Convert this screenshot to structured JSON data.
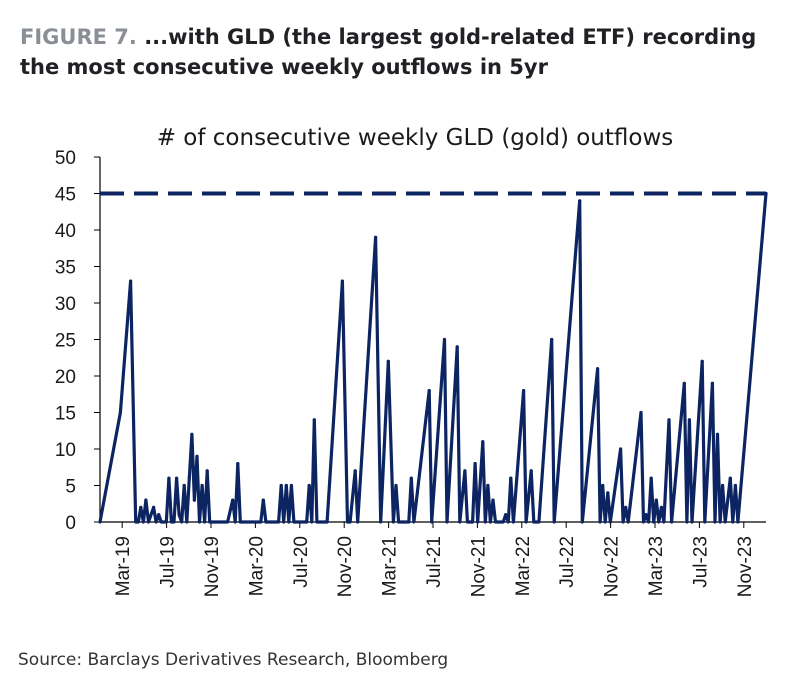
{
  "header": {
    "figure_label": "FIGURE 7.",
    "figure_title": "...with GLD (the largest gold-related ETF) recording the most consecutive weekly outflows in 5yr"
  },
  "source": "Source: Barclays Derivatives Research, Bloomberg",
  "colors": {
    "series": "#0c2461",
    "axis": "#000000",
    "text": "#1a1a1a"
  },
  "chart_data": {
    "type": "line",
    "title": "# of consecutive weekly GLD (gold) outflows",
    "xlabel": "",
    "ylabel": "",
    "ylim": [
      0,
      50
    ],
    "yticks": [
      0,
      5,
      10,
      15,
      20,
      25,
      30,
      35,
      40,
      45,
      50
    ],
    "x_ticklabels": [
      "Mar-19",
      "Jul-19",
      "Nov-19",
      "Mar-20",
      "Jul-20",
      "Nov-20",
      "Mar-21",
      "Jul-21",
      "Nov-21",
      "Mar-22",
      "Jul-22",
      "Nov-22",
      "Mar-23",
      "Jul-23",
      "Nov-23"
    ],
    "xlim": [
      "2019-03-01",
      "2024-03-01"
    ],
    "grid": false,
    "legend": "none",
    "reference_lines": [
      {
        "y": 45,
        "style": "dashed"
      }
    ],
    "series": [
      {
        "points": [
          [
            "2019-03-01",
            0
          ],
          [
            "2019-04-26",
            15
          ],
          [
            "2019-05-24",
            33
          ],
          [
            "2019-06-07",
            0
          ],
          [
            "2019-06-14",
            0
          ],
          [
            "2019-06-21",
            2
          ],
          [
            "2019-06-28",
            0
          ],
          [
            "2019-07-05",
            3
          ],
          [
            "2019-07-12",
            0
          ],
          [
            "2019-07-26",
            2
          ],
          [
            "2019-08-02",
            0
          ],
          [
            "2019-08-09",
            1
          ],
          [
            "2019-08-16",
            0
          ],
          [
            "2019-08-30",
            0
          ],
          [
            "2019-09-06",
            6
          ],
          [
            "2019-09-13",
            0
          ],
          [
            "2019-09-20",
            0
          ],
          [
            "2019-09-27",
            6
          ],
          [
            "2019-10-04",
            1
          ],
          [
            "2019-10-11",
            0
          ],
          [
            "2019-10-18",
            5
          ],
          [
            "2019-10-25",
            0
          ],
          [
            "2019-11-01",
            6
          ],
          [
            "2019-11-08",
            12
          ],
          [
            "2019-11-15",
            3
          ],
          [
            "2019-11-22",
            9
          ],
          [
            "2019-11-29",
            0
          ],
          [
            "2019-12-06",
            5
          ],
          [
            "2019-12-13",
            0
          ],
          [
            "2019-12-20",
            7
          ],
          [
            "2019-12-27",
            0
          ],
          [
            "2020-02-14",
            0
          ],
          [
            "2020-02-28",
            3
          ],
          [
            "2020-03-06",
            0
          ],
          [
            "2020-03-13",
            8
          ],
          [
            "2020-03-20",
            0
          ],
          [
            "2020-05-15",
            0
          ],
          [
            "2020-05-22",
            3
          ],
          [
            "2020-05-29",
            0
          ],
          [
            "2020-07-03",
            0
          ],
          [
            "2020-07-10",
            5
          ],
          [
            "2020-07-17",
            0
          ],
          [
            "2020-07-24",
            5
          ],
          [
            "2020-07-31",
            0
          ],
          [
            "2020-08-07",
            5
          ],
          [
            "2020-08-14",
            0
          ],
          [
            "2020-09-18",
            0
          ],
          [
            "2020-09-25",
            5
          ],
          [
            "2020-10-02",
            0
          ],
          [
            "2020-10-09",
            14
          ],
          [
            "2020-10-16",
            0
          ],
          [
            "2020-11-13",
            0
          ],
          [
            "2020-12-25",
            33
          ],
          [
            "2021-01-08",
            0
          ],
          [
            "2021-01-15",
            0
          ],
          [
            "2021-01-29",
            7
          ],
          [
            "2021-02-05",
            0
          ],
          [
            "2021-03-26",
            39
          ],
          [
            "2021-04-09",
            0
          ],
          [
            "2021-04-30",
            22
          ],
          [
            "2021-05-14",
            0
          ],
          [
            "2021-05-21",
            5
          ],
          [
            "2021-05-28",
            0
          ],
          [
            "2021-06-25",
            0
          ],
          [
            "2021-07-02",
            6
          ],
          [
            "2021-07-09",
            0
          ],
          [
            "2021-08-20",
            18
          ],
          [
            "2021-08-27",
            0
          ],
          [
            "2021-10-01",
            25
          ],
          [
            "2021-10-08",
            0
          ],
          [
            "2021-11-05",
            24
          ],
          [
            "2021-11-12",
            0
          ],
          [
            "2021-11-26",
            7
          ],
          [
            "2021-12-03",
            0
          ],
          [
            "2021-12-17",
            0
          ],
          [
            "2021-12-24",
            8
          ],
          [
            "2021-12-31",
            0
          ],
          [
            "2022-01-14",
            11
          ],
          [
            "2022-01-21",
            0
          ],
          [
            "2022-01-28",
            5
          ],
          [
            "2022-02-04",
            0
          ],
          [
            "2022-02-11",
            3
          ],
          [
            "2022-02-18",
            0
          ],
          [
            "2022-03-11",
            0
          ],
          [
            "2022-03-18",
            1
          ],
          [
            "2022-03-25",
            0
          ],
          [
            "2022-04-01",
            6
          ],
          [
            "2022-04-08",
            0
          ],
          [
            "2022-05-06",
            18
          ],
          [
            "2022-05-13",
            0
          ],
          [
            "2022-05-27",
            7
          ],
          [
            "2022-06-03",
            0
          ],
          [
            "2022-06-17",
            0
          ],
          [
            "2022-07-22",
            25
          ],
          [
            "2022-07-29",
            0
          ],
          [
            "2022-10-07",
            44
          ],
          [
            "2022-10-14",
            0
          ],
          [
            "2022-11-25",
            21
          ],
          [
            "2022-12-02",
            0
          ],
          [
            "2022-12-09",
            5
          ],
          [
            "2022-12-16",
            0
          ],
          [
            "2022-12-23",
            4
          ],
          [
            "2022-12-30",
            0
          ],
          [
            "2023-01-27",
            10
          ],
          [
            "2023-02-03",
            0
          ],
          [
            "2023-02-10",
            2
          ],
          [
            "2023-02-17",
            0
          ],
          [
            "2023-03-24",
            15
          ],
          [
            "2023-03-31",
            0
          ],
          [
            "2023-04-07",
            1
          ],
          [
            "2023-04-14",
            0
          ],
          [
            "2023-04-21",
            6
          ],
          [
            "2023-04-28",
            0
          ],
          [
            "2023-05-05",
            3
          ],
          [
            "2023-05-12",
            0
          ],
          [
            "2023-05-19",
            2
          ],
          [
            "2023-05-26",
            0
          ],
          [
            "2023-06-09",
            14
          ],
          [
            "2023-06-16",
            0
          ],
          [
            "2023-07-21",
            19
          ],
          [
            "2023-07-28",
            0
          ],
          [
            "2023-08-04",
            14
          ],
          [
            "2023-08-11",
            0
          ],
          [
            "2023-09-08",
            22
          ],
          [
            "2023-09-15",
            0
          ],
          [
            "2023-10-06",
            19
          ],
          [
            "2023-10-13",
            0
          ],
          [
            "2023-10-20",
            12
          ],
          [
            "2023-10-27",
            0
          ],
          [
            "2023-11-03",
            5
          ],
          [
            "2023-11-10",
            0
          ],
          [
            "2023-11-24",
            6
          ],
          [
            "2023-12-01",
            0
          ],
          [
            "2023-12-08",
            5
          ],
          [
            "2023-12-15",
            0
          ],
          [
            "2024-03-01",
            45
          ]
        ]
      }
    ]
  }
}
